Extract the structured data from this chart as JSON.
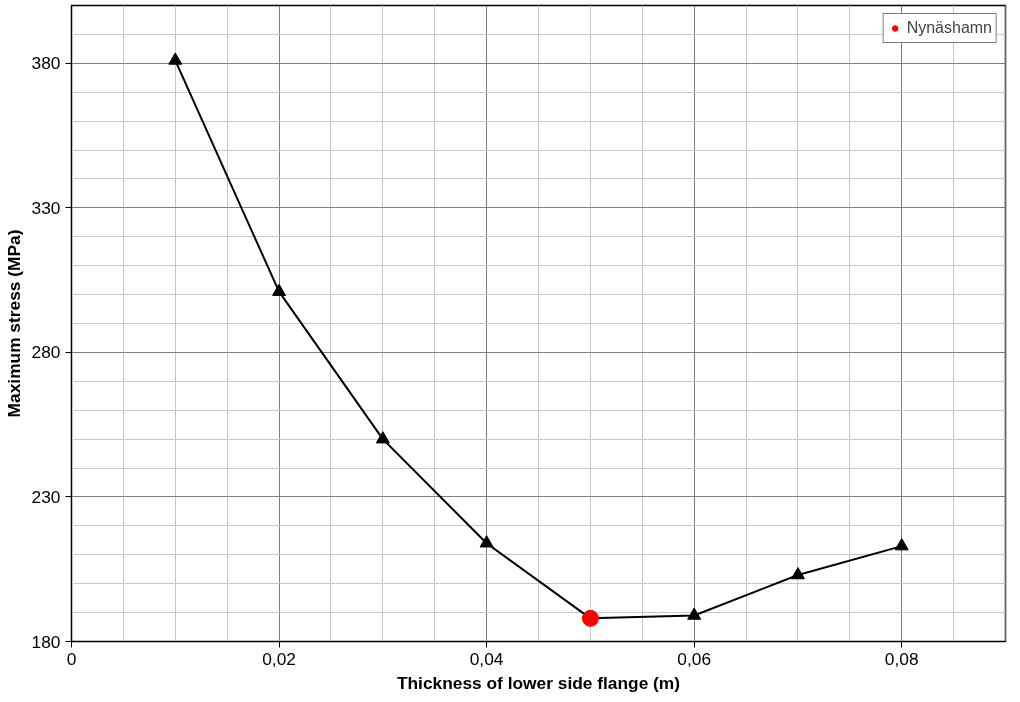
{
  "chart_data": {
    "type": "line",
    "xlabel": "Thickness of lower side flange (m)",
    "ylabel": "Maximum stress (MPa)",
    "x": [
      0.01,
      0.02,
      0.03,
      0.04,
      0.05,
      0.06,
      0.07,
      0.08
    ],
    "series": [
      {
        "color": "#000000",
        "values": [
          381,
          301,
          250,
          214,
          188,
          189,
          203,
          213
        ],
        "marker": "triangle"
      },
      {
        "type": "scatter",
        "name": "Nynäshamn",
        "color": "#ff0000",
        "x": [
          0.05
        ],
        "values": [
          188
        ],
        "marker": "circle"
      }
    ],
    "xlim": [
      0,
      0.09
    ],
    "ylim": [
      180,
      400
    ],
    "xticks": [
      0,
      {
        "value": 0.02,
        "label": "0,02"
      },
      {
        "value": 0.04,
        "label": "0,04"
      },
      {
        "value": 0.06,
        "label": "0,06"
      },
      {
        "value": 0.08,
        "label": "0,08"
      }
    ],
    "yticks": [
      180,
      230,
      280,
      330,
      380
    ],
    "grid": true,
    "legend": "top right"
  }
}
